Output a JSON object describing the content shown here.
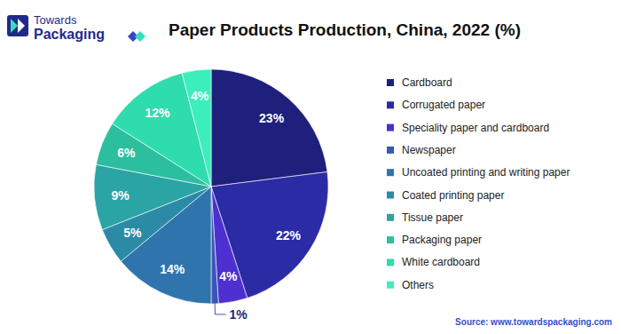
{
  "header": {
    "brand": [
      "Towards",
      "Packaging"
    ]
  },
  "chart_data": {
    "type": "pie",
    "title": "Paper Products Production, China, 2022 (%)",
    "source": "Source: www.towardspackaging.com",
    "categories": [
      "Cardboard",
      "Corrugated paper",
      "Speciality paper and cardboard",
      "Newspaper",
      "Uncoated printing and writing paper",
      "Coated printing paper",
      "Tissue paper",
      "Packaging paper",
      "White cardboard",
      "Others"
    ],
    "values": [
      23,
      22,
      4,
      1,
      14,
      5,
      9,
      6,
      12,
      4
    ],
    "value_labels": [
      "23%",
      "22%",
      "4%",
      "1%",
      "14%",
      "5%",
      "9%",
      "6%",
      "12%",
      "4%"
    ],
    "colors": [
      "#1f1f7c",
      "#2b2ba6",
      "#4d30cf",
      "#3a56b8",
      "#2f74ad",
      "#2b8ba7",
      "#2aa4a4",
      "#2bbf9f",
      "#2fdcae",
      "#3deebd"
    ],
    "data_labels": true,
    "legend": "right"
  }
}
